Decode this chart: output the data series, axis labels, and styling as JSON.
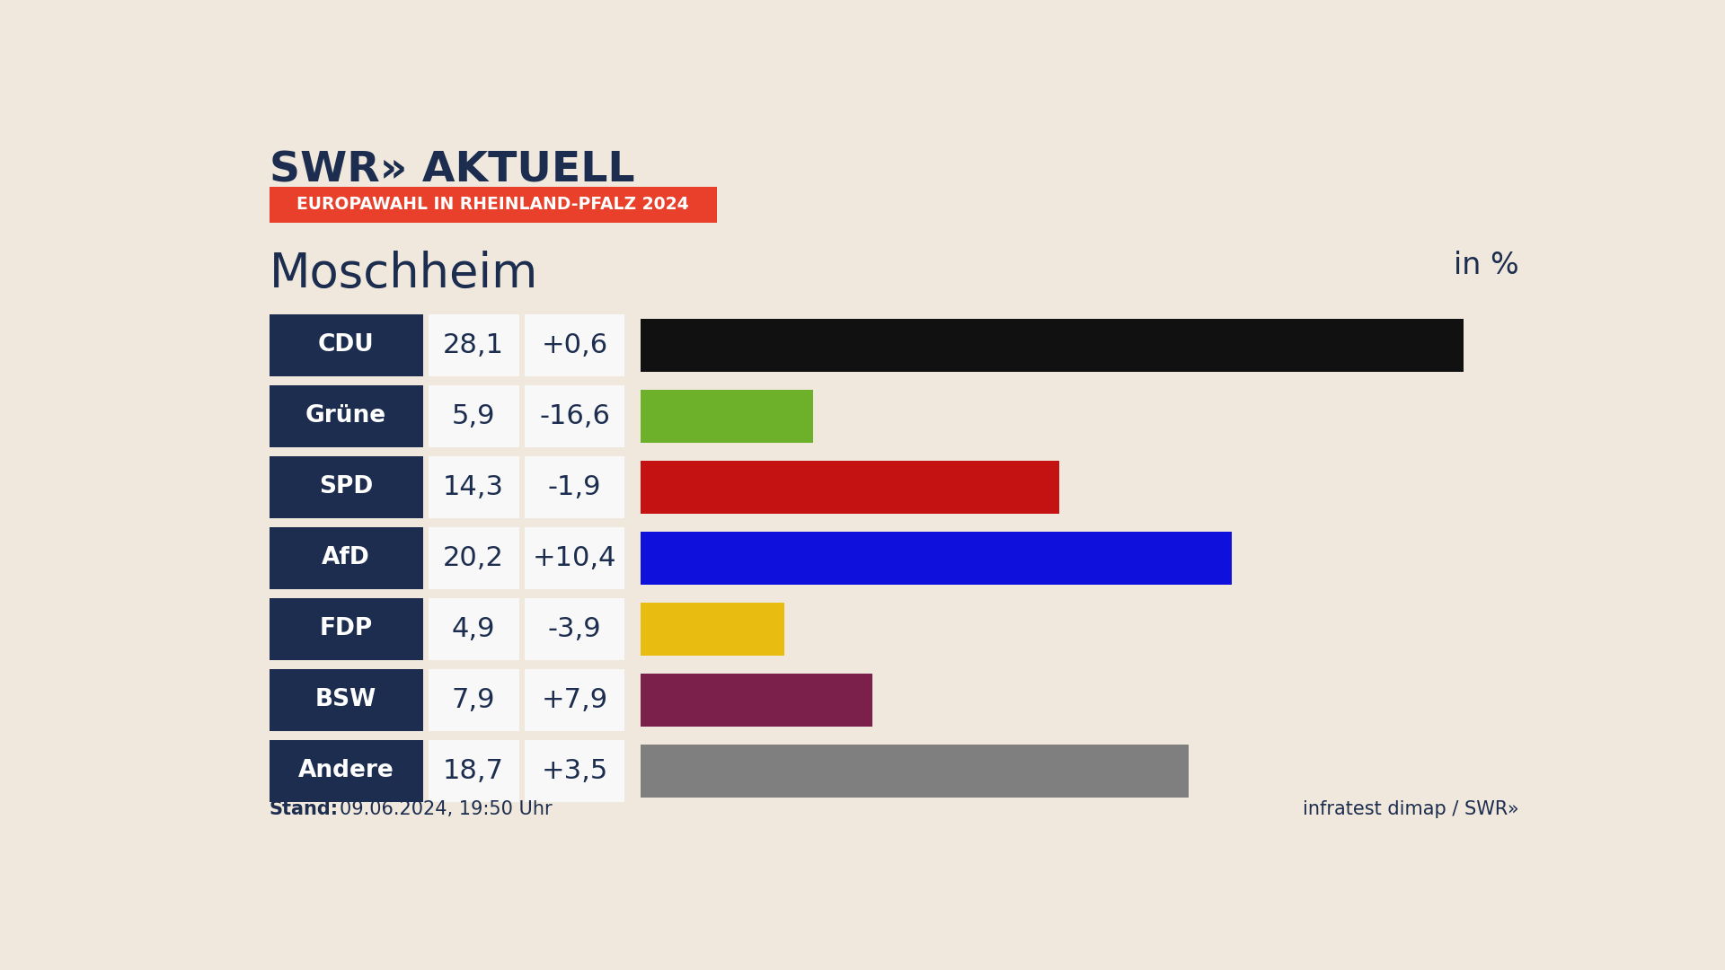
{
  "title_logo": "SWR» AKTUELL",
  "subtitle_badge": "EUROPAWAHL IN RHEINLAND-PFALZ 2024",
  "location": "Moschheim",
  "unit_label": "in %",
  "stand_bold": "Stand:",
  "stand_normal": "09.06.2024, 19:50 Uhr",
  "footer_right": "infratest dimap / SWR»",
  "background_color": "#f0e8dc",
  "label_bg_color": "#1c2d4f",
  "value_bg_color": "#f8f8f8",
  "badge_color": "#e8402a",
  "parties": [
    "CDU",
    "Grüne",
    "SPD",
    "AfD",
    "FDP",
    "BSW",
    "Andere"
  ],
  "values": [
    28.1,
    5.9,
    14.3,
    20.2,
    4.9,
    7.9,
    18.7
  ],
  "changes": [
    "+0,6",
    "-16,6",
    "-1,9",
    "+10,4",
    "-3,9",
    "+7,9",
    "+3,5"
  ],
  "bar_colors": [
    "#111111",
    "#6db02a",
    "#c41212",
    "#1010dd",
    "#e8bc10",
    "#7b1f4b",
    "#7f7f7f"
  ],
  "max_value": 30,
  "logo_color": "#1c2d4f",
  "location_color": "#1c2d4f",
  "unit_color": "#1c2d4f"
}
